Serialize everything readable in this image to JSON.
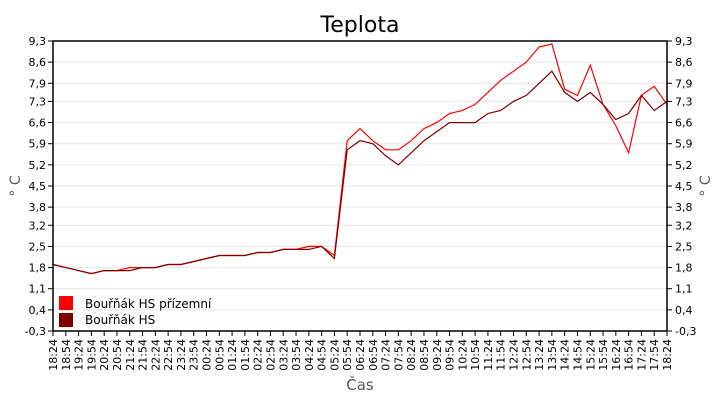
{
  "chart_data": {
    "type": "line",
    "title": "Teplota",
    "xlabel": "Čas",
    "ylabel": "° C",
    "ylabel_right": "° C",
    "ylim": [
      -0.3,
      9.3
    ],
    "yticks": [
      "-0,3",
      "0,4",
      "1,1",
      "1,8",
      "2,5",
      "3,2",
      "3,8",
      "4,5",
      "5,2",
      "5,9",
      "6,6",
      "7,3",
      "7,9",
      "8,6",
      "9,3"
    ],
    "grid": true,
    "legend_position": "bottom-left",
    "x": [
      "18:24",
      "18:54",
      "19:24",
      "19:54",
      "20:24",
      "20:54",
      "21:24",
      "21:54",
      "22:24",
      "22:54",
      "23:24",
      "23:54",
      "00:24",
      "00:54",
      "01:24",
      "01:54",
      "02:24",
      "02:54",
      "03:24",
      "03:54",
      "04:24",
      "04:54",
      "05:24",
      "05:54",
      "06:24",
      "06:54",
      "07:24",
      "07:54",
      "08:24",
      "08:54",
      "09:24",
      "09:54",
      "10:24",
      "10:54",
      "11:24",
      "11:54",
      "12:24",
      "12:54",
      "13:24",
      "13:54",
      "14:24",
      "14:54",
      "15:24",
      "15:54",
      "16:24",
      "16:54",
      "17:24",
      "17:54",
      "18:24"
    ],
    "series": [
      {
        "name": "Bouřňák HS přízemní",
        "color": "#ff0000",
        "values": [
          1.9,
          1.8,
          1.7,
          1.6,
          1.7,
          1.7,
          1.8,
          1.8,
          1.8,
          1.9,
          1.9,
          2.0,
          2.1,
          2.2,
          2.2,
          2.2,
          2.3,
          2.3,
          2.4,
          2.4,
          2.5,
          2.5,
          2.2,
          6.0,
          6.4,
          6.0,
          5.7,
          5.7,
          6.0,
          6.4,
          6.6,
          6.9,
          7.0,
          7.2,
          7.6,
          8.0,
          8.3,
          8.6,
          9.1,
          9.2,
          7.7,
          7.5,
          8.5,
          7.2,
          6.5,
          5.6,
          7.5,
          7.8,
          7.2
        ]
      },
      {
        "name": "Bouřňák HS",
        "color": "#800000",
        "values": [
          1.9,
          1.8,
          1.7,
          1.6,
          1.7,
          1.7,
          1.7,
          1.8,
          1.8,
          1.9,
          1.9,
          2.0,
          2.1,
          2.2,
          2.2,
          2.2,
          2.3,
          2.3,
          2.4,
          2.4,
          2.4,
          2.5,
          2.1,
          5.7,
          6.0,
          5.9,
          5.5,
          5.2,
          5.6,
          6.0,
          6.3,
          6.6,
          6.6,
          6.6,
          6.9,
          7.0,
          7.3,
          7.5,
          7.9,
          8.3,
          7.6,
          7.3,
          7.6,
          7.2,
          6.7,
          6.9,
          7.5,
          7.0,
          7.3
        ]
      }
    ]
  }
}
